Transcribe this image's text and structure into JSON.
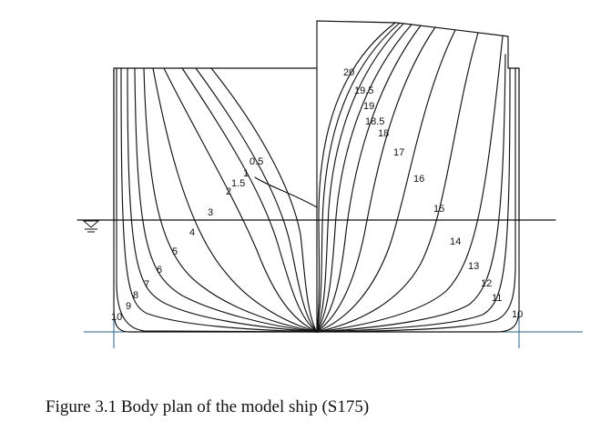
{
  "caption": "Figure 3.1 Body plan of the model ship (S175)",
  "aft_station_labels": [
    "0.5",
    "1",
    "1.5",
    "2",
    "3",
    "4",
    "5",
    "6",
    "7",
    "8",
    "9",
    "10"
  ],
  "fore_station_labels": [
    "20",
    "19.5",
    "19",
    "18.5",
    "18",
    "17",
    "16",
    "15",
    "14",
    "13",
    "12",
    "11",
    "10"
  ],
  "colors": {
    "lines": "#111111",
    "baseline": "#2b5f8a"
  }
}
